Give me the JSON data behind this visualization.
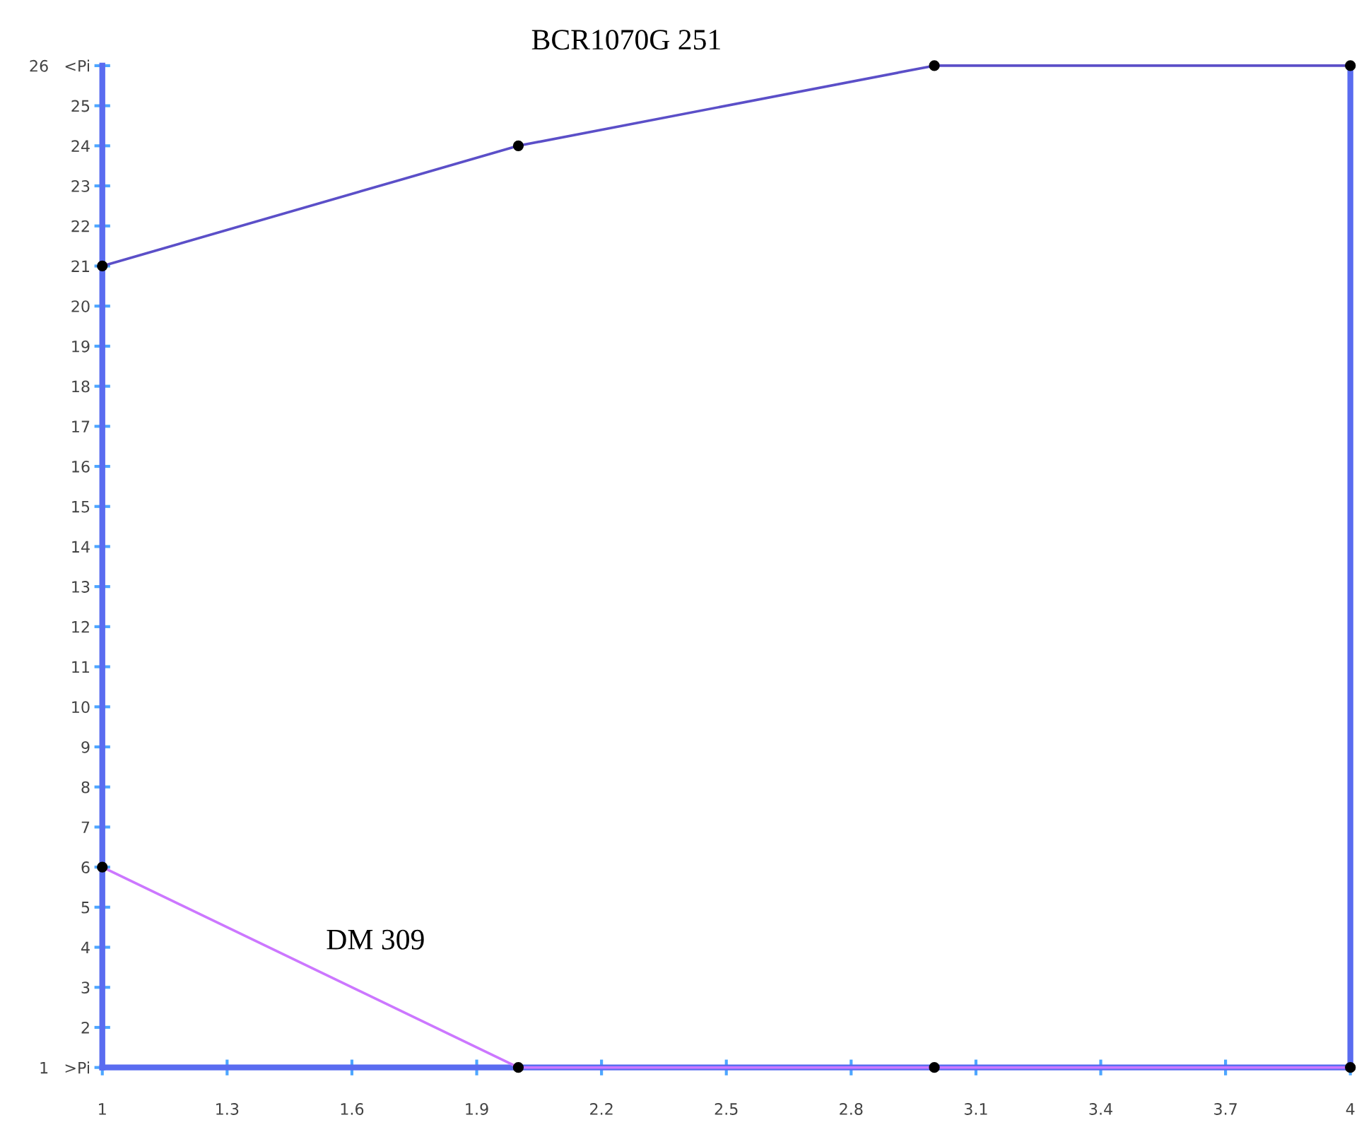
{
  "chart_data": {
    "type": "line",
    "x": [
      1,
      2,
      3,
      4
    ],
    "series": [
      {
        "name": "BCR1070G 251",
        "color": "#5b4fc8",
        "values": [
          21,
          24,
          26,
          26
        ]
      },
      {
        "name": "DM 309",
        "color": "#cc77ff",
        "values": [
          6,
          1,
          1,
          1
        ]
      }
    ],
    "xlim": [
      1,
      4
    ],
    "xticks": [
      1,
      1.3,
      1.6,
      1.9,
      2.2,
      2.5,
      2.8,
      3.1,
      3.4,
      3.7,
      4
    ],
    "ylim": [
      1,
      26
    ],
    "yticks": [
      {
        "value": 1,
        "label": "1   >Pi"
      },
      2,
      3,
      4,
      5,
      6,
      7,
      8,
      9,
      10,
      11,
      12,
      13,
      14,
      15,
      16,
      17,
      18,
      19,
      20,
      21,
      22,
      23,
      24,
      25,
      {
        "value": 26,
        "label": "26   <Pi"
      }
    ],
    "marker": "circle",
    "line_style": "solid",
    "grid": false,
    "legend": false
  }
}
